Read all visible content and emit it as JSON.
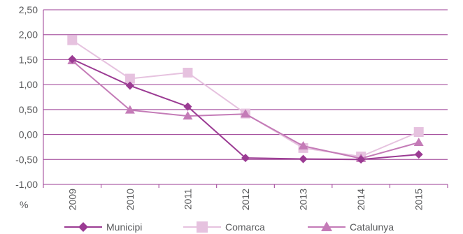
{
  "chart_data": {
    "type": "line",
    "title": "",
    "xlabel": "",
    "ylabel": "%",
    "ylim": [
      -1.0,
      2.5
    ],
    "y_ticks": [
      "2,50",
      "2,00",
      "1,50",
      "1,00",
      "0,50",
      "0,00",
      "-0,50",
      "-1,00"
    ],
    "y_tick_values": [
      2.5,
      2.0,
      1.5,
      1.0,
      0.5,
      0.0,
      -0.5,
      -1.0
    ],
    "categories": [
      "2009",
      "2010",
      "2011",
      "2012",
      "2013",
      "2014",
      "2015"
    ],
    "grid": "horizontal",
    "legend_position": "bottom",
    "series": [
      {
        "name": "Municipi",
        "marker": "diamond",
        "color": "#9b3b93",
        "values": [
          1.51,
          0.98,
          0.56,
          -0.47,
          -0.49,
          -0.5,
          -0.4
        ]
      },
      {
        "name": "Comarca",
        "marker": "square",
        "color": "#e6c2df",
        "values": [
          1.89,
          1.12,
          1.24,
          0.42,
          -0.27,
          -0.44,
          0.05
        ]
      },
      {
        "name": "Catalunya",
        "marker": "triangle",
        "color": "#c47bb7",
        "values": [
          1.48,
          0.49,
          0.37,
          0.41,
          -0.23,
          -0.48,
          -0.16
        ]
      }
    ]
  }
}
